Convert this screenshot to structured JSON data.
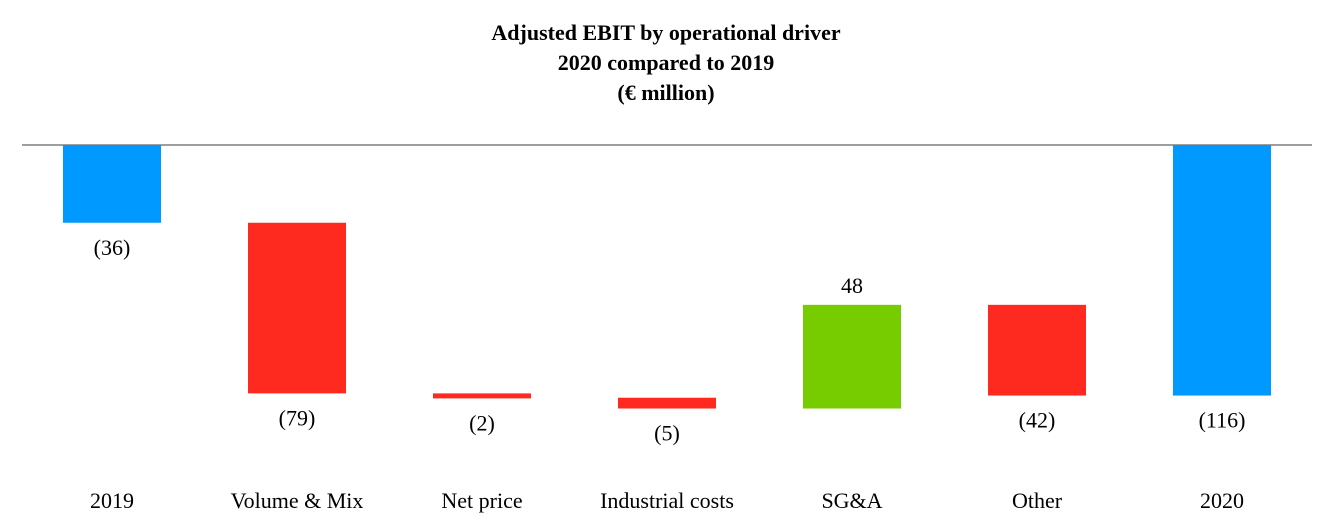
{
  "chart_data": {
    "type": "waterfall",
    "title": "Adjusted EBIT by operational driver",
    "subtitle": "2020 compared to 2019",
    "unit_label": "(€ million)",
    "categories": [
      "2019",
      "Volume & Mix",
      "Net price",
      "Industrial costs",
      "SG&A",
      "Other",
      "2020"
    ],
    "values": [
      -36,
      -79,
      -2,
      -5,
      48,
      -42,
      -116
    ],
    "value_labels": [
      "(36)",
      "(79)",
      "(2)",
      "(5)",
      "48",
      "(42)",
      "(116)"
    ],
    "bar_kinds": [
      "total",
      "delta",
      "delta",
      "delta",
      "delta",
      "delta",
      "total"
    ],
    "ylim": [
      -124,
      0
    ],
    "colors": {
      "total": "#0099FF",
      "decrease": "#FF2A1F",
      "increase": "#77CC00",
      "axis": "#7F7F7F"
    }
  }
}
